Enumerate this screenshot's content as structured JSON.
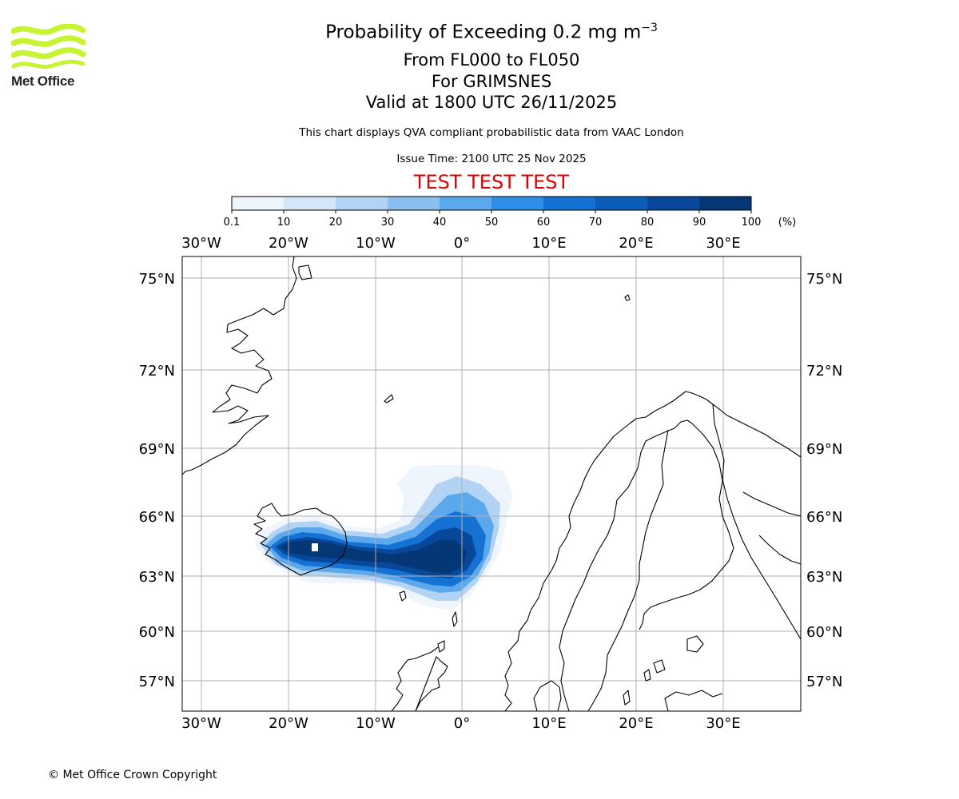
{
  "logo": {
    "text": "Met Office",
    "color": "#c6f432"
  },
  "header": {
    "title": "Probability of Exceeding 0.2 mg m",
    "title_sup": "−3",
    "level": "From FL000 to FL050",
    "volcano": "For GRIMSNES",
    "valid": "Valid at 1800 UTC 26/11/2025",
    "disclaimer": "This chart displays QVA compliant probabilistic data from VAAC London",
    "issue_time": "Issue Time: 2100 UTC 25 Nov 2025",
    "test_banner": "TEST TEST TEST"
  },
  "colorbar": {
    "ticks": [
      "0.1",
      "10",
      "20",
      "30",
      "40",
      "50",
      "60",
      "70",
      "80",
      "90",
      "100"
    ],
    "unit": "(%)",
    "colors": [
      "#eef5fc",
      "#d4e6f8",
      "#b3d3f4",
      "#8bbff0",
      "#5ca8ec",
      "#2f8ee6",
      "#1672d2",
      "#0b5db8",
      "#07489a",
      "#053676"
    ]
  },
  "map": {
    "lon_labels": [
      "30°W",
      "20°W",
      "10°W",
      "0°",
      "10°E",
      "20°E",
      "30°E"
    ],
    "lat_labels": [
      "75°N",
      "72°N",
      "69°N",
      "66°N",
      "63°N",
      "60°N",
      "57°N"
    ],
    "plume_center": {
      "lat": "64°N",
      "lon": "19°W"
    }
  },
  "footer": {
    "copyright": "© Met Office Crown Copyright"
  }
}
